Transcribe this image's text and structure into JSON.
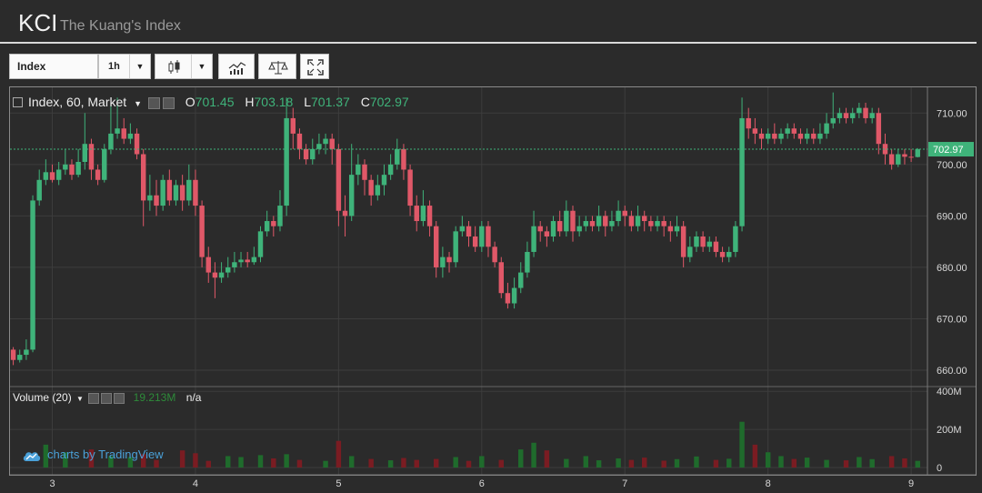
{
  "header": {
    "title": "KCI",
    "subtitle": "The Kuang's Index"
  },
  "toolbar": {
    "symbol": "Index",
    "interval": "1h",
    "style_icon": "candlestick-icon",
    "indicators_icon": "indicators-icon",
    "compare_icon": "compare-icon",
    "fullscreen_icon": "fullscreen-icon"
  },
  "legend": {
    "title": "Index, 60, Market",
    "open_label": "O",
    "open": "701.45",
    "high_label": "H",
    "high": "703.18",
    "low_label": "L",
    "low": "701.37",
    "close_label": "C",
    "close": "702.97"
  },
  "volume_legend": {
    "title": "Volume (20)",
    "value": "19.213M",
    "na": "n/a"
  },
  "branding": {
    "text": "charts by TradingView"
  },
  "colors": {
    "up": "#3fb37a",
    "down": "#e05868",
    "vol_up": "#1f6b2c",
    "vol_down": "#7a1c22",
    "background": "#2b2b2b",
    "grid": "#3d3d3d",
    "axis_text": "#d8d8d8"
  },
  "chart_data": {
    "type": "candlestick",
    "price_axis": {
      "ylim": [
        657,
        715
      ],
      "ticks": [
        660,
        670,
        680,
        690,
        700,
        710
      ],
      "tick_labels": [
        "660.00",
        "670.00",
        "680.00",
        "690.00",
        "700.00",
        "710.00"
      ],
      "last_price_label": "702.97"
    },
    "volume_axis": {
      "ylim": [
        0,
        420
      ],
      "ticks": [
        0,
        200,
        400
      ],
      "tick_labels": [
        "0",
        "200M",
        "400M"
      ]
    },
    "x_axis": {
      "day_labels": [
        "3",
        "4",
        "5",
        "6",
        "7",
        "8",
        "9"
      ],
      "day_positions": [
        6,
        28,
        50,
        72,
        94,
        116,
        138
      ]
    },
    "grid": true,
    "candles": [
      [
        0,
        664.0,
        662.0,
        664.5,
        661.0
      ],
      [
        1,
        662.0,
        663.0,
        664.0,
        661.5
      ],
      [
        2,
        663.0,
        664.0,
        666.0,
        662.0
      ],
      [
        3,
        664.0,
        693.0,
        694.0,
        663.5
      ],
      [
        4,
        693.0,
        697.0,
        699.0,
        692.0
      ],
      [
        5,
        697.0,
        698.5,
        701.0,
        696.0
      ],
      [
        6,
        698.5,
        697.0,
        700.0,
        696.5
      ],
      [
        7,
        697.0,
        699.0,
        700.5,
        696.0
      ],
      [
        8,
        699.0,
        700.0,
        703.0,
        698.0
      ],
      [
        9,
        700.0,
        698.0,
        701.0,
        697.0
      ],
      [
        10,
        698.0,
        700.5,
        703.0,
        697.5
      ],
      [
        11,
        700.5,
        704.0,
        710.0,
        699.0
      ],
      [
        12,
        704.0,
        699.0,
        705.0,
        697.0
      ],
      [
        13,
        699.0,
        697.0,
        700.0,
        696.0
      ],
      [
        14,
        697.0,
        703.0,
        704.0,
        696.5
      ],
      [
        15,
        703.0,
        706.0,
        712.0,
        702.0
      ],
      [
        16,
        706.0,
        707.0,
        713.0,
        705.0
      ],
      [
        17,
        707.0,
        705.0,
        709.0,
        704.0
      ],
      [
        18,
        705.0,
        706.0,
        708.0,
        704.0
      ],
      [
        19,
        706.0,
        702.0,
        707.0,
        701.0
      ],
      [
        20,
        702.0,
        693.0,
        703.0,
        688.0
      ],
      [
        21,
        693.0,
        694.0,
        698.0,
        691.0
      ],
      [
        22,
        694.0,
        692.0,
        697.0,
        690.0
      ],
      [
        23,
        692.0,
        697.0,
        698.0,
        691.0
      ],
      [
        24,
        697.0,
        693.0,
        699.0,
        692.0
      ],
      [
        25,
        693.0,
        696.0,
        697.0,
        692.0
      ],
      [
        26,
        696.0,
        693.0,
        698.0,
        691.0
      ],
      [
        27,
        693.0,
        697.0,
        700.0,
        692.0
      ],
      [
        28,
        697.0,
        692.0,
        699.0,
        690.0
      ],
      [
        29,
        692.0,
        682.0,
        693.0,
        680.0
      ],
      [
        30,
        682.0,
        679.0,
        684.0,
        677.0
      ],
      [
        31,
        679.0,
        678.0,
        681.0,
        674.0
      ],
      [
        32,
        678.0,
        679.0,
        681.0,
        677.0
      ],
      [
        33,
        679.0,
        680.0,
        682.0,
        678.0
      ],
      [
        34,
        680.0,
        681.0,
        683.0,
        679.0
      ],
      [
        35,
        681.0,
        681.5,
        683.0,
        680.0
      ],
      [
        36,
        681.5,
        681.0,
        683.0,
        680.0
      ],
      [
        37,
        681.0,
        682.0,
        684.0,
        680.5
      ],
      [
        38,
        682.0,
        687.0,
        688.0,
        681.0
      ],
      [
        39,
        687.0,
        689.0,
        691.0,
        686.0
      ],
      [
        40,
        689.0,
        688.0,
        690.0,
        686.0
      ],
      [
        41,
        688.0,
        692.0,
        695.0,
        687.0
      ],
      [
        42,
        692.0,
        709.0,
        713.0,
        690.0
      ],
      [
        43,
        709.0,
        706.0,
        711.0,
        703.0
      ],
      [
        44,
        706.0,
        703.0,
        707.0,
        701.0
      ],
      [
        45,
        703.0,
        701.0,
        704.0,
        700.0
      ],
      [
        46,
        701.0,
        703.0,
        705.0,
        700.0
      ],
      [
        47,
        703.0,
        704.0,
        706.0,
        702.0
      ],
      [
        48,
        704.0,
        705.0,
        706.0,
        702.0
      ],
      [
        49,
        705.0,
        703.0,
        706.0,
        700.0
      ],
      [
        50,
        703.0,
        691.0,
        704.0,
        688.0
      ],
      [
        51,
        691.0,
        690.0,
        694.0,
        686.0
      ],
      [
        52,
        690.0,
        698.0,
        704.0,
        689.0
      ],
      [
        53,
        698.0,
        700.0,
        702.0,
        696.0
      ],
      [
        54,
        700.0,
        697.0,
        701.0,
        694.0
      ],
      [
        55,
        697.0,
        694.0,
        698.0,
        692.0
      ],
      [
        56,
        694.0,
        696.0,
        698.0,
        693.0
      ],
      [
        57,
        696.0,
        698.0,
        700.0,
        694.0
      ],
      [
        58,
        698.0,
        700.0,
        702.0,
        697.0
      ],
      [
        59,
        700.0,
        703.0,
        705.0,
        699.0
      ],
      [
        60,
        703.0,
        699.0,
        704.0,
        697.0
      ],
      [
        61,
        699.0,
        692.0,
        700.0,
        690.0
      ],
      [
        62,
        692.0,
        689.0,
        694.0,
        687.0
      ],
      [
        63,
        689.0,
        692.0,
        695.0,
        688.0
      ],
      [
        64,
        692.0,
        688.0,
        693.0,
        686.0
      ],
      [
        65,
        688.0,
        680.0,
        689.0,
        678.0
      ],
      [
        66,
        680.0,
        682.0,
        684.0,
        678.0
      ],
      [
        67,
        682.0,
        681.0,
        683.0,
        679.0
      ],
      [
        68,
        681.0,
        687.0,
        688.0,
        680.0
      ],
      [
        69,
        687.0,
        688.0,
        690.0,
        686.0
      ],
      [
        70,
        688.0,
        686.0,
        689.0,
        684.0
      ],
      [
        71,
        686.0,
        684.0,
        688.0,
        683.0
      ],
      [
        72,
        684.0,
        688.0,
        689.0,
        683.0
      ],
      [
        73,
        688.0,
        684.0,
        689.0,
        682.0
      ],
      [
        74,
        684.0,
        681.0,
        685.0,
        680.0
      ],
      [
        75,
        681.0,
        675.0,
        682.0,
        674.0
      ],
      [
        76,
        675.0,
        673.0,
        677.0,
        672.0
      ],
      [
        77,
        673.0,
        676.0,
        678.0,
        672.0
      ],
      [
        78,
        676.0,
        679.0,
        681.0,
        675.0
      ],
      [
        79,
        679.0,
        683.0,
        685.0,
        678.0
      ],
      [
        80,
        683.0,
        688.0,
        691.0,
        682.0
      ],
      [
        81,
        688.0,
        687.0,
        689.0,
        685.0
      ],
      [
        82,
        687.0,
        686.0,
        688.0,
        684.0
      ],
      [
        83,
        686.0,
        689.0,
        690.0,
        685.0
      ],
      [
        84,
        689.0,
        687.0,
        691.0,
        686.0
      ],
      [
        85,
        687.0,
        691.0,
        693.0,
        686.0
      ],
      [
        86,
        691.0,
        687.0,
        692.0,
        685.0
      ],
      [
        87,
        687.0,
        688.0,
        690.0,
        686.0
      ],
      [
        88,
        688.0,
        689.0,
        690.0,
        687.0
      ],
      [
        89,
        689.0,
        688.0,
        690.0,
        687.0
      ],
      [
        90,
        688.0,
        690.0,
        692.0,
        687.0
      ],
      [
        91,
        690.0,
        688.0,
        691.0,
        686.0
      ],
      [
        92,
        688.0,
        689.0,
        691.0,
        687.0
      ],
      [
        93,
        689.0,
        691.0,
        693.0,
        688.0
      ],
      [
        94,
        691.0,
        690.0,
        692.0,
        688.0
      ],
      [
        95,
        690.0,
        688.0,
        691.0,
        687.0
      ],
      [
        96,
        688.0,
        690.0,
        692.0,
        687.0
      ],
      [
        97,
        690.0,
        689.0,
        691.0,
        687.0
      ],
      [
        98,
        689.0,
        688.0,
        690.0,
        687.0
      ],
      [
        99,
        688.0,
        689.0,
        690.0,
        687.0
      ],
      [
        100,
        689.0,
        688.0,
        690.0,
        686.0
      ],
      [
        101,
        688.0,
        687.0,
        689.0,
        685.0
      ],
      [
        102,
        687.0,
        688.0,
        690.0,
        686.0
      ],
      [
        103,
        688.0,
        682.0,
        689.0,
        680.0
      ],
      [
        104,
        682.0,
        684.0,
        686.0,
        681.0
      ],
      [
        105,
        684.0,
        686.0,
        687.0,
        683.0
      ],
      [
        106,
        686.0,
        684.0,
        687.0,
        683.0
      ],
      [
        107,
        684.0,
        685.0,
        686.0,
        683.0
      ],
      [
        108,
        685.0,
        683.0,
        686.0,
        682.0
      ],
      [
        109,
        683.0,
        682.0,
        684.0,
        681.0
      ],
      [
        110,
        682.0,
        683.0,
        684.0,
        681.0
      ],
      [
        111,
        683.0,
        688.0,
        689.0,
        682.0
      ],
      [
        112,
        688.0,
        709.0,
        713.0,
        687.0
      ],
      [
        113,
        709.0,
        707.0,
        711.0,
        705.0
      ],
      [
        114,
        707.0,
        706.0,
        709.0,
        704.0
      ],
      [
        115,
        706.0,
        705.0,
        707.0,
        703.0
      ],
      [
        116,
        705.0,
        706.0,
        707.0,
        704.0
      ],
      [
        117,
        706.0,
        705.0,
        708.0,
        704.0
      ],
      [
        118,
        705.0,
        706.0,
        707.0,
        704.0
      ],
      [
        119,
        706.0,
        707.0,
        708.0,
        705.0
      ],
      [
        120,
        707.0,
        706.0,
        708.0,
        705.0
      ],
      [
        121,
        706.0,
        705.0,
        707.0,
        704.0
      ],
      [
        122,
        705.0,
        706.0,
        707.0,
        704.0
      ],
      [
        123,
        706.0,
        705.0,
        707.0,
        704.0
      ],
      [
        124,
        705.0,
        706.0,
        708.0,
        704.0
      ],
      [
        125,
        706.0,
        708.0,
        710.0,
        705.0
      ],
      [
        126,
        708.0,
        709.0,
        714.0,
        707.0
      ],
      [
        127,
        709.0,
        710.0,
        711.0,
        708.0
      ],
      [
        128,
        710.0,
        709.0,
        711.0,
        708.0
      ],
      [
        129,
        709.0,
        710.0,
        711.0,
        708.0
      ],
      [
        130,
        710.0,
        711.0,
        712.0,
        709.0
      ],
      [
        131,
        711.0,
        709.0,
        712.0,
        708.0
      ],
      [
        132,
        709.0,
        710.0,
        711.0,
        708.0
      ],
      [
        133,
        710.0,
        704.0,
        711.0,
        702.0
      ],
      [
        134,
        704.0,
        702.0,
        706.0,
        700.0
      ],
      [
        135,
        702.0,
        700.0,
        703.0,
        699.0
      ],
      [
        136,
        700.0,
        702.0,
        703.0,
        699.5
      ],
      [
        137,
        702.0,
        701.5,
        703.0,
        700.0
      ],
      [
        138,
        701.5,
        701.45,
        703.0,
        700.5
      ],
      [
        139,
        701.45,
        702.97,
        703.18,
        701.37
      ]
    ],
    "volumes": [
      [
        5,
        120
      ],
      [
        8,
        80
      ],
      [
        12,
        95
      ],
      [
        15,
        60
      ],
      [
        18,
        55
      ],
      [
        20,
        70
      ],
      [
        22,
        40
      ],
      [
        26,
        90
      ],
      [
        28,
        75
      ],
      [
        30,
        35
      ],
      [
        33,
        60
      ],
      [
        35,
        55
      ],
      [
        38,
        65
      ],
      [
        40,
        48
      ],
      [
        42,
        70
      ],
      [
        44,
        40
      ],
      [
        48,
        35
      ],
      [
        50,
        140
      ],
      [
        52,
        60
      ],
      [
        55,
        45
      ],
      [
        58,
        38
      ],
      [
        60,
        50
      ],
      [
        62,
        40
      ],
      [
        65,
        45
      ],
      [
        68,
        55
      ],
      [
        70,
        35
      ],
      [
        72,
        60
      ],
      [
        75,
        40
      ],
      [
        78,
        95
      ],
      [
        80,
        130
      ],
      [
        82,
        90
      ],
      [
        85,
        45
      ],
      [
        88,
        60
      ],
      [
        90,
        38
      ],
      [
        93,
        48
      ],
      [
        95,
        40
      ],
      [
        97,
        52
      ],
      [
        100,
        36
      ],
      [
        102,
        44
      ],
      [
        105,
        58
      ],
      [
        108,
        40
      ],
      [
        110,
        46
      ],
      [
        112,
        240
      ],
      [
        114,
        120
      ],
      [
        116,
        80
      ],
      [
        118,
        60
      ],
      [
        120,
        45
      ],
      [
        122,
        52
      ],
      [
        125,
        40
      ],
      [
        128,
        38
      ],
      [
        130,
        55
      ],
      [
        132,
        44
      ],
      [
        135,
        60
      ],
      [
        137,
        48
      ],
      [
        139,
        35
      ]
    ]
  }
}
